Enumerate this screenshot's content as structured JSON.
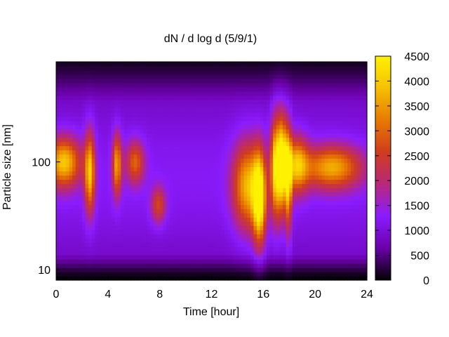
{
  "chart_data": {
    "type": "heatmap",
    "title": "dN / d log d (5/9/1)",
    "xlabel": "Time [hour]",
    "ylabel": "Particle size [nm]",
    "xlim": [
      0,
      24
    ],
    "ylim": [
      8,
      850
    ],
    "y_scale": "log",
    "x_ticks": [
      0,
      4,
      8,
      12,
      16,
      20,
      24
    ],
    "y_ticks": [
      10,
      100
    ],
    "colorbar": {
      "min": 0,
      "max": 4500,
      "ticks": [
        0,
        500,
        1000,
        1500,
        2000,
        2500,
        3000,
        3500,
        4000,
        4500
      ],
      "palette": [
        "#000000",
        "#6a00a8",
        "#8a1cff",
        "#b8287a",
        "#d03c1e",
        "#e87a00",
        "#f5c000",
        "#fff200"
      ]
    },
    "background_level": 1050,
    "features": [
      {
        "center_hour": 0.6,
        "center_nm": 100,
        "width_hour": 0.9,
        "log_width": 0.16,
        "peak": 2800
      },
      {
        "center_hour": 2.6,
        "center_nm": 80,
        "width_hour": 0.28,
        "log_width": 0.26,
        "peak": 2700
      },
      {
        "center_hour": 4.7,
        "center_nm": 95,
        "width_hour": 0.25,
        "log_width": 0.2,
        "peak": 2400
      },
      {
        "center_hour": 6.1,
        "center_nm": 100,
        "width_hour": 0.5,
        "log_width": 0.14,
        "peak": 1800
      },
      {
        "center_hour": 7.9,
        "center_nm": 40,
        "width_hour": 0.4,
        "log_width": 0.12,
        "peak": 1500
      },
      {
        "center_hour": 14.8,
        "center_nm": 60,
        "width_hour": 0.8,
        "log_width": 0.28,
        "peak": 2600
      },
      {
        "center_hour": 15.7,
        "center_nm": 45,
        "width_hour": 0.35,
        "log_width": 0.3,
        "peak": 3200
      },
      {
        "center_hour": 17.0,
        "center_nm": 90,
        "width_hour": 0.3,
        "log_width": 0.32,
        "peak": 3400
      },
      {
        "center_hour": 17.5,
        "center_nm": 100,
        "width_hour": 0.22,
        "log_width": 0.3,
        "peak": 3000
      },
      {
        "center_hour": 17.95,
        "center_nm": 70,
        "width_hour": 0.18,
        "log_width": 0.34,
        "peak": 2700
      },
      {
        "center_hour": 18.6,
        "center_nm": 95,
        "width_hour": 0.6,
        "log_width": 0.18,
        "peak": 2400
      },
      {
        "center_hour": 21.3,
        "center_nm": 90,
        "width_hour": 1.6,
        "log_width": 0.14,
        "peak": 2500
      }
    ]
  }
}
